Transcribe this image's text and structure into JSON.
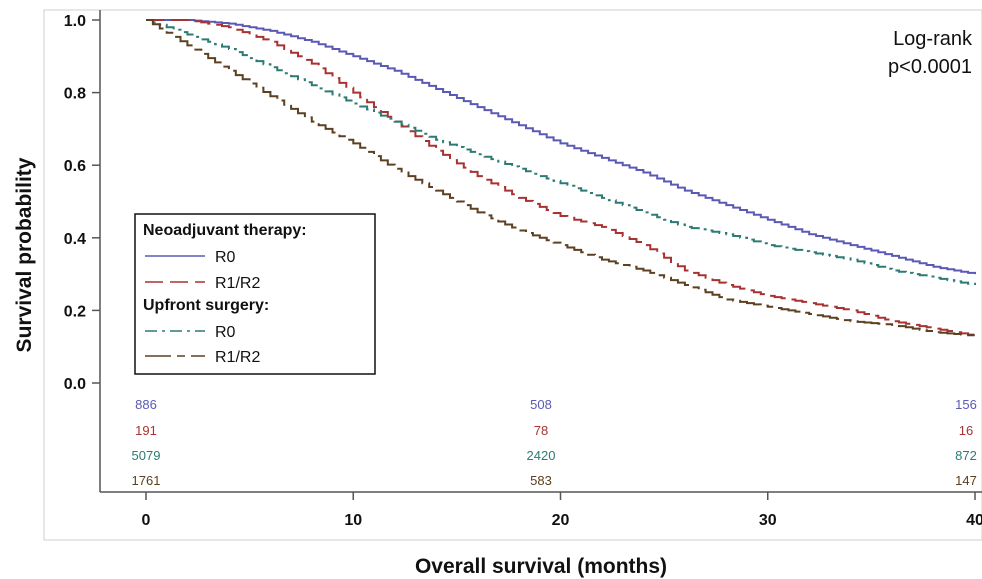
{
  "chart_data": {
    "type": "line",
    "title": "",
    "xlabel": "Overall survival (months)",
    "ylabel": "Survival probability",
    "xlim": [
      0,
      40
    ],
    "ylim": [
      0,
      1.0
    ],
    "xticks": [
      "0",
      "10",
      "20",
      "30",
      "40"
    ],
    "yticks": [
      "0.0",
      "0.2",
      "0.4",
      "0.6",
      "0.8",
      "1.0"
    ],
    "grid": false,
    "legend_position": "left",
    "annotation": [
      "Log-rank",
      "p<0.0001"
    ],
    "legend_groups": [
      {
        "heading": "Neoadjuvant therapy:",
        "entries": [
          "R0",
          "R1/R2"
        ]
      },
      {
        "heading": "Upfront surgery:",
        "entries": [
          "R0",
          "R1/R2"
        ]
      }
    ],
    "series": [
      {
        "label": "R0",
        "group": "Neoadjuvant therapy",
        "color": "#5a5ab4",
        "dash": "solid",
        "x": [
          0,
          2,
          4,
          6,
          8,
          10,
          12,
          14,
          16,
          18,
          20,
          22,
          24,
          26,
          28,
          30,
          32,
          34,
          36,
          38,
          40
        ],
        "y": [
          1.0,
          1.0,
          0.99,
          0.97,
          0.94,
          0.9,
          0.86,
          0.81,
          0.76,
          0.71,
          0.66,
          0.62,
          0.58,
          0.53,
          0.49,
          0.45,
          0.41,
          0.38,
          0.35,
          0.32,
          0.3
        ]
      },
      {
        "label": "R1/R2",
        "group": "Neoadjuvant therapy",
        "color": "#a83232",
        "dash": "long",
        "x": [
          0,
          2,
          4,
          6,
          8,
          10,
          12,
          14,
          16,
          18,
          20,
          22,
          24,
          26,
          28,
          30,
          32,
          34,
          36,
          38,
          40
        ],
        "y": [
          1.0,
          1.0,
          0.98,
          0.94,
          0.88,
          0.8,
          0.72,
          0.64,
          0.57,
          0.51,
          0.46,
          0.43,
          0.38,
          0.31,
          0.27,
          0.24,
          0.22,
          0.2,
          0.17,
          0.15,
          0.13
        ]
      },
      {
        "label": "R0",
        "group": "Upfront surgery",
        "color": "#2d7a75",
        "dash": "dashdot",
        "x": [
          0,
          2,
          4,
          6,
          8,
          10,
          12,
          14,
          16,
          18,
          20,
          22,
          24,
          26,
          28,
          30,
          32,
          34,
          36,
          38,
          40
        ],
        "y": [
          1.0,
          0.96,
          0.92,
          0.87,
          0.82,
          0.77,
          0.72,
          0.67,
          0.63,
          0.59,
          0.55,
          0.51,
          0.47,
          0.43,
          0.41,
          0.38,
          0.36,
          0.34,
          0.31,
          0.29,
          0.27
        ]
      },
      {
        "label": "R1/R2",
        "group": "Upfront surgery",
        "color": "#5c4020",
        "dash": "longdash",
        "x": [
          0,
          2,
          4,
          6,
          8,
          10,
          12,
          14,
          16,
          18,
          20,
          22,
          24,
          26,
          28,
          30,
          32,
          34,
          36,
          38,
          40
        ],
        "y": [
          1.0,
          0.93,
          0.86,
          0.79,
          0.72,
          0.66,
          0.59,
          0.53,
          0.47,
          0.42,
          0.38,
          0.34,
          0.31,
          0.27,
          0.23,
          0.21,
          0.19,
          0.17,
          0.16,
          0.14,
          0.13
        ]
      }
    ],
    "risk_table": {
      "times": [
        0,
        20,
        40
      ],
      "rows": [
        {
          "color": "#5a5ab4",
          "values": [
            "886",
            "508",
            "156"
          ]
        },
        {
          "color": "#a83232",
          "values": [
            "191",
            "78",
            "16"
          ]
        },
        {
          "color": "#2d7a75",
          "values": [
            "5079",
            "2420",
            "872"
          ]
        },
        {
          "color": "#5c4020",
          "values": [
            "1761",
            "583",
            "147"
          ]
        }
      ]
    }
  }
}
